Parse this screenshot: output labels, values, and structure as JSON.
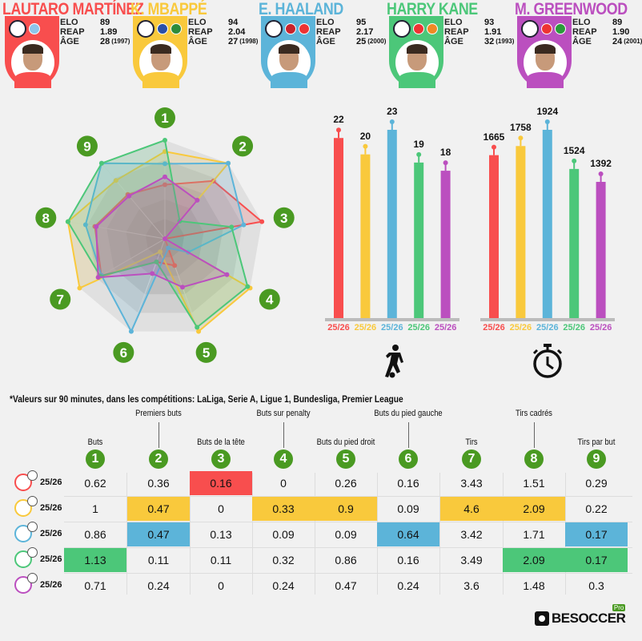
{
  "players": [
    {
      "name": "LAUTARO MARTÍNEZ",
      "color": "#f84e4e",
      "elo": "89",
      "reap": "1.89",
      "age": "28",
      "birth": "(1997)",
      "crest": "inter-crest-icon",
      "flags": [
        "#8ec5ea"
      ],
      "row_crest": "inter"
    },
    {
      "name": "K. MBAPPÉ",
      "color": "#f9c93c",
      "elo": "94",
      "reap": "2.04",
      "age": "27",
      "birth": "(1998)",
      "crest": "real-madrid-crest-icon",
      "flags": [
        "#2a4fa8",
        "#2e8b3a"
      ],
      "row_crest": "real-madrid"
    },
    {
      "name": "E. HAALAND",
      "color": "#5cb4d9",
      "elo": "95",
      "reap": "2.17",
      "age": "25",
      "birth": "(2000)",
      "crest": "man-city-crest-icon",
      "flags": [
        "#c8232c",
        "#e33"
      ],
      "row_crest": "man-city"
    },
    {
      "name": "HARRY KANE",
      "color": "#4cc779",
      "elo": "93",
      "reap": "1.91",
      "age": "32",
      "birth": "(1993)",
      "crest": "bayern-crest-icon",
      "flags": [
        "#e33",
        "#f08a24"
      ],
      "row_crest": "bayern"
    },
    {
      "name": "M. GREENWOOD",
      "color": "#bb4fbf",
      "elo": "89",
      "reap": "1.90",
      "age": "24",
      "birth": "(2001)",
      "crest": "marseille-crest-icon",
      "flags": [
        "#e33",
        "#2b9a3b"
      ],
      "row_crest": "marseille"
    }
  ],
  "stat_labels": {
    "elo": "ELO",
    "reap": "REAP",
    "age": "ÂGE"
  },
  "note": "*Valeurs sur 90 minutes, dans les compétitions: LaLiga, Serie A, Ligue 1, Bundesliga, Premier League",
  "metrics": [
    {
      "n": "1",
      "label": "Buts",
      "level": "low"
    },
    {
      "n": "2",
      "label": "Premiers buts",
      "level": "high"
    },
    {
      "n": "3",
      "label": "Buts de la tête",
      "level": "low"
    },
    {
      "n": "4",
      "label": "Buts sur penalty",
      "level": "high"
    },
    {
      "n": "5",
      "label": "Buts du pied droit",
      "level": "low"
    },
    {
      "n": "6",
      "label": "Buts du pied gauche",
      "level": "high"
    },
    {
      "n": "7",
      "label": "Tirs",
      "level": "low"
    },
    {
      "n": "8",
      "label": "Tirs cadrés",
      "level": "high"
    },
    {
      "n": "9",
      "label": "Tirs par but",
      "level": "low"
    }
  ],
  "season": "25/26",
  "table": {
    "rows": [
      [
        "0.62",
        "0.36",
        "0.16",
        "0",
        "0.26",
        "0.16",
        "3.43",
        "1.51",
        "0.29"
      ],
      [
        "1",
        "0.47",
        "0",
        "0.33",
        "0.9",
        "0.09",
        "4.6",
        "2.09",
        "0.22"
      ],
      [
        "0.86",
        "0.47",
        "0.13",
        "0.09",
        "0.09",
        "0.64",
        "3.42",
        "1.71",
        "0.17"
      ],
      [
        "1.13",
        "0.11",
        "0.11",
        "0.32",
        "0.86",
        "0.16",
        "3.49",
        "2.09",
        "0.17"
      ],
      [
        "0.71",
        "0.24",
        "0",
        "0.24",
        "0.47",
        "0.24",
        "3.6",
        "1.48",
        "0.3"
      ]
    ],
    "highlights": [
      [
        2
      ],
      [
        1,
        3,
        4,
        6,
        7
      ],
      [
        1,
        5,
        8
      ],
      [
        0,
        7,
        8
      ],
      []
    ]
  },
  "chart_data": [
    {
      "type": "radar",
      "axes": [
        "1",
        "2",
        "3",
        "4",
        "5",
        "6",
        "7",
        "8",
        "9"
      ],
      "series_from": "table.rows",
      "colors": [
        "#f84e4e",
        "#f9c93c",
        "#5cb4d9",
        "#4cc779",
        "#bb4fbf"
      ]
    },
    {
      "type": "bar",
      "icon": "player-kicking-ball-icon",
      "categories": [
        "25/26",
        "25/26",
        "25/26",
        "25/26",
        "25/26"
      ],
      "values": [
        22,
        20,
        23,
        19,
        18
      ],
      "ylim": [
        0,
        23
      ]
    },
    {
      "type": "bar",
      "icon": "stopwatch-icon",
      "categories": [
        "25/26",
        "25/26",
        "25/26",
        "25/26",
        "25/26"
      ],
      "values": [
        1665,
        1758,
        1924,
        1524,
        1392
      ],
      "ylim": [
        0,
        1924
      ]
    }
  ],
  "brand": {
    "name": "BESOCCER",
    "badge": "Pro"
  }
}
